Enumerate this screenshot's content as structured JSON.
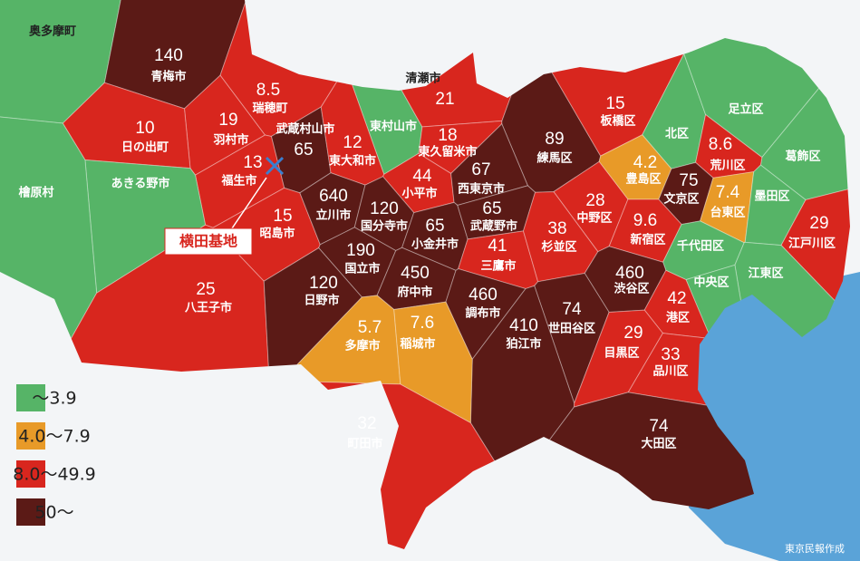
{
  "map": {
    "regions": [
      {
        "name": "奥多摩町",
        "color": "#56b467"
      },
      {
        "name": "青梅市",
        "value": 140,
        "color": "#5b1a16"
      },
      {
        "name": "瑞穂町",
        "value": 8.5,
        "color": "#d8261e"
      },
      {
        "name": "羽村市",
        "value": 19,
        "color": "#d8261e"
      },
      {
        "name": "日の出町",
        "value": 10,
        "color": "#d8261e"
      },
      {
        "name": "武蔵村山市",
        "value": 65,
        "color": "#5b1a16"
      },
      {
        "name": "東村山市",
        "color": "#56b467"
      },
      {
        "name": "清瀬市",
        "value": 21,
        "color": "#d8261e"
      },
      {
        "name": "東大和市",
        "value": 12,
        "color": "#d8261e"
      },
      {
        "name": "東久留米市",
        "value": 18,
        "color": "#d8261e"
      },
      {
        "name": "練馬区",
        "value": 89,
        "color": "#5b1a16"
      },
      {
        "name": "板橋区",
        "value": 15,
        "color": "#d8261e"
      },
      {
        "name": "北区",
        "color": "#56b467"
      },
      {
        "name": "足立区",
        "color": "#56b467"
      },
      {
        "name": "葛飾区",
        "color": "#56b467"
      },
      {
        "name": "荒川区",
        "value": 8.6,
        "color": "#d8261e"
      },
      {
        "name": "豊島区",
        "value": 4.2,
        "color": "#e89a28"
      },
      {
        "name": "文京区",
        "value": 75,
        "color": "#5b1a16"
      },
      {
        "name": "台東区",
        "value": 7.4,
        "color": "#e89a28"
      },
      {
        "name": "墨田区",
        "color": "#56b467"
      },
      {
        "name": "江戸川区",
        "value": 29,
        "color": "#d8261e"
      },
      {
        "name": "福生市",
        "value": 13,
        "color": "#d8261e"
      },
      {
        "name": "小平市",
        "value": 44,
        "color": "#d8261e"
      },
      {
        "name": "西東京市",
        "value": 67,
        "color": "#5b1a16"
      },
      {
        "name": "昭島市",
        "value": 15,
        "color": "#d8261e"
      },
      {
        "name": "立川市",
        "value": 640,
        "color": "#5b1a16"
      },
      {
        "name": "国分寺市",
        "value": 120,
        "color": "#5b1a16"
      },
      {
        "name": "小金井市",
        "value": 65,
        "color": "#5b1a16"
      },
      {
        "name": "武蔵野市",
        "value": 65,
        "color": "#5b1a16"
      },
      {
        "name": "三鷹市",
        "value": 41,
        "color": "#d8261e"
      },
      {
        "name": "中野区",
        "value": 28,
        "color": "#d8261e"
      },
      {
        "name": "杉並区",
        "value": 38,
        "color": "#d8261e"
      },
      {
        "name": "新宿区",
        "value": 9.6,
        "color": "#d8261e"
      },
      {
        "name": "千代田区",
        "color": "#56b467"
      },
      {
        "name": "江東区",
        "color": "#56b467"
      },
      {
        "name": "中央区",
        "color": "#56b467"
      },
      {
        "name": "あきる野市",
        "color": "#56b467"
      },
      {
        "name": "檜原村",
        "color": "#56b467"
      },
      {
        "name": "八王子市",
        "value": 25,
        "color": "#d8261e"
      },
      {
        "name": "国立市",
        "value": 190,
        "color": "#5b1a16"
      },
      {
        "name": "府中市",
        "value": 450,
        "color": "#5b1a16"
      },
      {
        "name": "日野市",
        "value": 120,
        "color": "#5b1a16"
      },
      {
        "name": "調布市",
        "value": 460,
        "color": "#5b1a16"
      },
      {
        "name": "渋谷区",
        "value": 460,
        "color": "#5b1a16"
      },
      {
        "name": "港区",
        "value": 42,
        "color": "#d8261e"
      },
      {
        "name": "世田谷区",
        "value": 74,
        "color": "#5b1a16"
      },
      {
        "name": "狛江市",
        "value": 410,
        "color": "#5b1a16"
      },
      {
        "name": "多摩市",
        "value": 5.7,
        "color": "#e89a28"
      },
      {
        "name": "稲城市",
        "value": 7.6,
        "color": "#e89a28"
      },
      {
        "name": "目黒区",
        "value": 29,
        "color": "#d8261e"
      },
      {
        "name": "品川区",
        "value": 33,
        "color": "#d8261e"
      },
      {
        "name": "町田市",
        "value": 32,
        "color": "#d8261e"
      },
      {
        "name": "大田区",
        "value": 74,
        "color": "#5b1a16"
      }
    ],
    "legend": [
      {
        "label": "～3.9",
        "color": "#56b467"
      },
      {
        "label": "4.0～7.9",
        "color": "#e89a28"
      },
      {
        "label": "8.0～49.9",
        "color": "#d8261e"
      },
      {
        "label": "50～",
        "color": "#5b1a16"
      }
    ],
    "annotation": "横田基地",
    "credit": "東京民報作成"
  }
}
